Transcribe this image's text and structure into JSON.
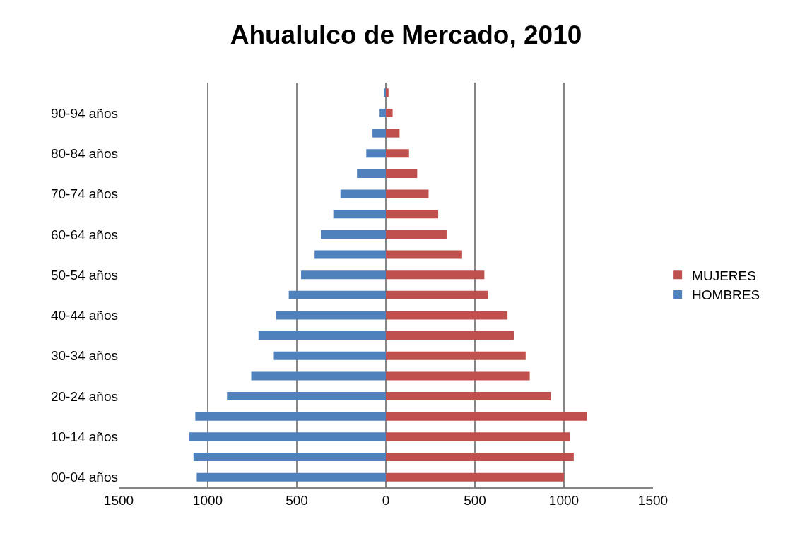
{
  "chart_data": {
    "type": "bar",
    "orientation": "horizontal",
    "stacked": true,
    "title": "Ahualulco de Mercado, 2010",
    "categories": [
      null,
      "90-94 años",
      null,
      "80-84 años",
      null,
      "70-74 años",
      null,
      "60-64 años",
      null,
      "50-54 años",
      null,
      "40-44 años",
      null,
      "30-34 años",
      null,
      "20-24 años",
      null,
      "10-14 años",
      null,
      "00-04 años"
    ],
    "series": [
      {
        "name": "MUJERES",
        "color": "#c0504d",
        "values": [
          15,
          38,
          77,
          130,
          176,
          240,
          294,
          341,
          428,
          553,
          574,
          683,
          721,
          785,
          808,
          926,
          1129,
          1032,
          1055,
          1000
        ]
      },
      {
        "name": "HOMBRES",
        "color": "#4f81bd",
        "values": [
          -10,
          -35,
          -75,
          -110,
          -162,
          -255,
          -295,
          -365,
          -400,
          -476,
          -545,
          -616,
          -715,
          -629,
          -756,
          -892,
          -1070,
          -1103,
          -1080,
          -1062
        ]
      }
    ],
    "xlim": [
      -1500,
      1500
    ],
    "xticks": [
      {
        "value": -1500,
        "label": "1500"
      },
      {
        "value": -1000,
        "label": "1000"
      },
      {
        "value": -500,
        "label": "500"
      },
      0,
      500,
      1000,
      1500
    ],
    "grid": "x",
    "legend": "right"
  }
}
